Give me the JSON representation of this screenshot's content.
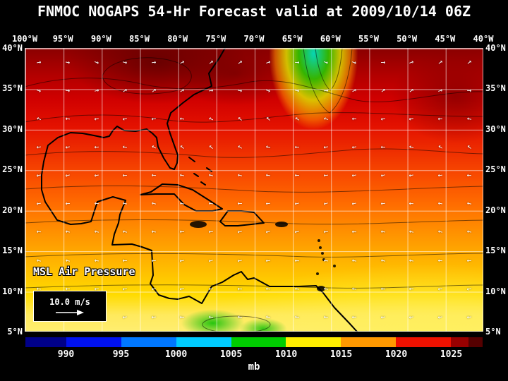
{
  "title": "FNMOC NOGAPS 54-Hr Forecast valid at 2009/10/14 06Z",
  "axes": {
    "lon_labels": [
      "100°W",
      "95°W",
      "90°W",
      "85°W",
      "80°W",
      "75°W",
      "70°W",
      "65°W",
      "60°W",
      "55°W",
      "50°W",
      "45°W",
      "40°W"
    ],
    "lat_labels": [
      "40°N",
      "35°N",
      "30°N",
      "25°N",
      "20°N",
      "15°N",
      "10°N",
      "5°N"
    ]
  },
  "map": {
    "field_label": "MSL Air Pressure",
    "wind_scale_label": "10.0 m/s",
    "arrow_color": "#ffffff",
    "arrow_grid": {
      "rows": 10,
      "cols": 16
    }
  },
  "icons": {
    "wind-arrow": "→"
  },
  "colorbar": {
    "unit_label": "mb",
    "tick_labels": [
      "990",
      "995",
      "1000",
      "1005",
      "1010",
      "1015",
      "1020",
      "1025"
    ],
    "segments": [
      {
        "color": "#000088",
        "width_pct": 9
      },
      {
        "color": "#0011ee",
        "width_pct": 12
      },
      {
        "color": "#0077ff",
        "width_pct": 12
      },
      {
        "color": "#00ccff",
        "width_pct": 12
      },
      {
        "color": "#00cc00",
        "width_pct": 12
      },
      {
        "color": "#ffee00",
        "width_pct": 12
      },
      {
        "color": "#ff9900",
        "width_pct": 12
      },
      {
        "color": "#ee1100",
        "width_pct": 12
      },
      {
        "color": "#990000",
        "width_pct": 4
      },
      {
        "color": "#550000",
        "width_pct": 3
      }
    ]
  },
  "chart_data": {
    "type": "heatmap",
    "title": "FNMOC NOGAPS 54-Hr Forecast valid at 2009/10/14 06Z",
    "field": "MSL Air Pressure",
    "unit": "mb",
    "x_ticks": [
      "100°W",
      "95°W",
      "90°W",
      "85°W",
      "80°W",
      "75°W",
      "70°W",
      "65°W",
      "60°W",
      "55°W",
      "50°W",
      "45°W",
      "40°W"
    ],
    "y_ticks": [
      "40°N",
      "35°N",
      "30°N",
      "25°N",
      "20°N",
      "15°N",
      "10°N",
      "5°N"
    ],
    "colorbar_ticks": [
      990,
      995,
      1000,
      1005,
      1010,
      1015,
      1020,
      1025
    ],
    "wind_reference_label": "10.0 m/s",
    "legend_position": "bottom",
    "grid": true
  }
}
